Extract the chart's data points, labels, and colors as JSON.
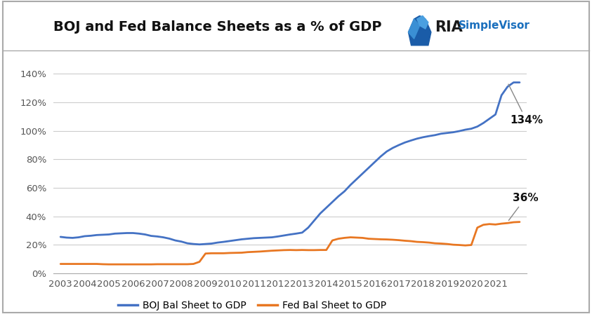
{
  "title": "BOJ and Fed Balance Sheets as a % of GDP",
  "boj_color": "#4472C4",
  "fed_color": "#E87722",
  "background_color": "#FFFFFF",
  "grid_color": "#CCCCCC",
  "yticks": [
    0,
    0.2,
    0.4,
    0.6,
    0.8,
    1.0,
    1.2,
    1.4
  ],
  "ytick_labels": [
    "0%",
    "20%",
    "40%",
    "60%",
    "80%",
    "100%",
    "120%",
    "140%"
  ],
  "legend_boj": "BOJ Bal Sheet to GDP",
  "legend_fed": "Fed Bal Sheet to GDP",
  "annotation_boj": "134%",
  "annotation_fed": "36%",
  "boj_x": [
    2003,
    2003.25,
    2003.5,
    2003.75,
    2004,
    2004.25,
    2004.5,
    2004.75,
    2005,
    2005.25,
    2005.5,
    2005.75,
    2006,
    2006.25,
    2006.5,
    2006.75,
    2007,
    2007.25,
    2007.5,
    2007.75,
    2008,
    2008.25,
    2008.5,
    2008.75,
    2009,
    2009.25,
    2009.5,
    2009.75,
    2010,
    2010.25,
    2010.5,
    2010.75,
    2011,
    2011.25,
    2011.5,
    2011.75,
    2012,
    2012.25,
    2012.5,
    2012.75,
    2013,
    2013.25,
    2013.5,
    2013.75,
    2014,
    2014.25,
    2014.5,
    2014.75,
    2015,
    2015.25,
    2015.5,
    2015.75,
    2016,
    2016.25,
    2016.5,
    2016.75,
    2017,
    2017.25,
    2017.5,
    2017.75,
    2018,
    2018.25,
    2018.5,
    2018.75,
    2019,
    2019.25,
    2019.5,
    2019.75,
    2020,
    2020.25,
    2020.5,
    2020.75,
    2021,
    2021.25,
    2021.5,
    2021.75,
    2022
  ],
  "boj_y": [
    0.255,
    0.25,
    0.248,
    0.252,
    0.26,
    0.263,
    0.268,
    0.27,
    0.272,
    0.278,
    0.28,
    0.282,
    0.282,
    0.278,
    0.272,
    0.262,
    0.258,
    0.252,
    0.243,
    0.23,
    0.222,
    0.21,
    0.205,
    0.202,
    0.205,
    0.208,
    0.215,
    0.22,
    0.226,
    0.232,
    0.238,
    0.242,
    0.246,
    0.248,
    0.25,
    0.252,
    0.258,
    0.265,
    0.272,
    0.278,
    0.285,
    0.32,
    0.37,
    0.42,
    0.46,
    0.5,
    0.54,
    0.575,
    0.62,
    0.66,
    0.7,
    0.74,
    0.78,
    0.82,
    0.855,
    0.88,
    0.9,
    0.918,
    0.932,
    0.945,
    0.955,
    0.963,
    0.97,
    0.98,
    0.985,
    0.99,
    0.998,
    1.008,
    1.015,
    1.03,
    1.055,
    1.085,
    1.115,
    1.25,
    1.31,
    1.34,
    1.34
  ],
  "fed_x": [
    2003,
    2003.25,
    2003.5,
    2003.75,
    2004,
    2004.25,
    2004.5,
    2004.75,
    2005,
    2005.25,
    2005.5,
    2005.75,
    2006,
    2006.25,
    2006.5,
    2006.75,
    2007,
    2007.25,
    2007.5,
    2007.75,
    2008,
    2008.25,
    2008.5,
    2008.75,
    2009,
    2009.25,
    2009.5,
    2009.75,
    2010,
    2010.25,
    2010.5,
    2010.75,
    2011,
    2011.25,
    2011.5,
    2011.75,
    2012,
    2012.25,
    2012.5,
    2012.75,
    2013,
    2013.25,
    2013.5,
    2013.75,
    2014,
    2014.25,
    2014.5,
    2014.75,
    2015,
    2015.25,
    2015.5,
    2015.75,
    2016,
    2016.25,
    2016.5,
    2016.75,
    2017,
    2017.25,
    2017.5,
    2017.75,
    2018,
    2018.25,
    2018.5,
    2018.75,
    2019,
    2019.25,
    2019.5,
    2019.75,
    2020,
    2020.25,
    2020.5,
    2020.75,
    2021,
    2021.25,
    2021.5,
    2021.75,
    2022
  ],
  "fed_y": [
    0.065,
    0.065,
    0.065,
    0.065,
    0.065,
    0.065,
    0.065,
    0.063,
    0.062,
    0.062,
    0.062,
    0.062,
    0.062,
    0.062,
    0.062,
    0.062,
    0.063,
    0.063,
    0.063,
    0.063,
    0.063,
    0.063,
    0.065,
    0.08,
    0.138,
    0.14,
    0.14,
    0.14,
    0.142,
    0.143,
    0.144,
    0.148,
    0.15,
    0.152,
    0.155,
    0.158,
    0.16,
    0.162,
    0.163,
    0.162,
    0.163,
    0.162,
    0.162,
    0.163,
    0.163,
    0.23,
    0.242,
    0.248,
    0.252,
    0.25,
    0.248,
    0.242,
    0.24,
    0.238,
    0.237,
    0.235,
    0.232,
    0.228,
    0.225,
    0.22,
    0.218,
    0.215,
    0.21,
    0.208,
    0.205,
    0.2,
    0.198,
    0.195,
    0.198,
    0.32,
    0.34,
    0.345,
    0.342,
    0.348,
    0.352,
    0.358,
    0.36
  ],
  "xticks": [
    2003,
    2004,
    2005,
    2006,
    2007,
    2008,
    2009,
    2010,
    2011,
    2012,
    2013,
    2014,
    2015,
    2016,
    2017,
    2018,
    2019,
    2020,
    2021
  ],
  "xtick_labels": [
    "2003",
    "2004",
    "2005",
    "2006",
    "2007",
    "2008",
    "2009",
    "2010",
    "2011",
    "2012",
    "2013",
    "2014",
    "2015",
    "2016",
    "2017",
    "2018",
    "2019",
    "2020",
    "2021"
  ],
  "border_color": "#AAAAAA",
  "ria_text_color": "#1a1a1a",
  "simplevisor_color": "#1a6fbd",
  "logo_icon_color1": "#1a5ca8",
  "logo_icon_color2": "#3a8fd4"
}
